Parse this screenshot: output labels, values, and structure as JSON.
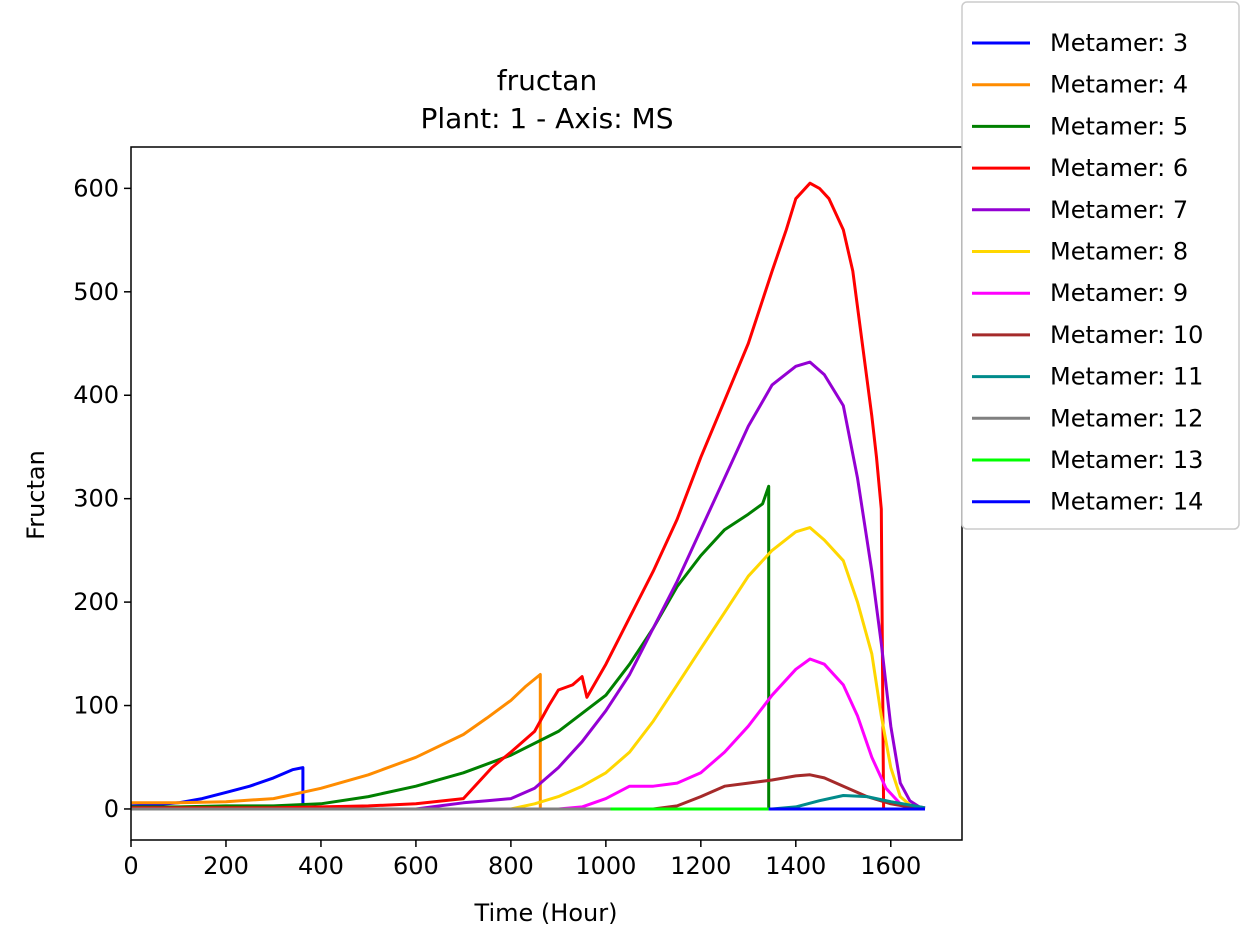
{
  "chart_data": {
    "type": "line",
    "title": "fructan",
    "subtitle": "Plant: 1 - Axis: MS",
    "xlabel": "Time (Hour)",
    "ylabel": "Fructan",
    "xlim": [
      0,
      1750
    ],
    "ylim": [
      -30,
      640
    ],
    "xticks": [
      0,
      200,
      400,
      600,
      800,
      1000,
      1200,
      1400,
      1600
    ],
    "yticks": [
      0,
      100,
      200,
      300,
      400,
      500,
      600
    ],
    "grid": false,
    "legend_position": "outside top-right",
    "series": [
      {
        "name": "Metamer: 3",
        "color": "#0000ff",
        "x": [
          0,
          50,
          100,
          150,
          200,
          250,
          300,
          340,
          362,
          362,
          1672
        ],
        "y": [
          3,
          4,
          6,
          10,
          16,
          22,
          30,
          38,
          40,
          0,
          0
        ]
      },
      {
        "name": "Metamer: 4",
        "color": "#ff8c00",
        "x": [
          0,
          100,
          200,
          300,
          400,
          500,
          600,
          700,
          750,
          800,
          830,
          862,
          862,
          1672
        ],
        "y": [
          6,
          6,
          7,
          10,
          20,
          33,
          50,
          72,
          88,
          105,
          118,
          130,
          0,
          0
        ]
      },
      {
        "name": "Metamer: 5",
        "color": "#008000",
        "x": [
          0,
          100,
          200,
          300,
          400,
          500,
          600,
          700,
          800,
          900,
          1000,
          1050,
          1100,
          1150,
          1200,
          1250,
          1300,
          1330,
          1343,
          1343,
          1672
        ],
        "y": [
          2,
          2,
          3,
          3,
          5,
          12,
          22,
          35,
          52,
          75,
          110,
          140,
          175,
          215,
          245,
          270,
          285,
          295,
          312,
          0,
          0
        ]
      },
      {
        "name": "Metamer: 6",
        "color": "#ff0000",
        "x": [
          0,
          200,
          300,
          400,
          500,
          600,
          700,
          760,
          800,
          850,
          880,
          900,
          930,
          950,
          960,
          1000,
          1050,
          1100,
          1150,
          1200,
          1250,
          1300,
          1350,
          1380,
          1400,
          1430,
          1450,
          1470,
          1500,
          1520,
          1540,
          1560,
          1570,
          1580,
          1585,
          1585,
          1672
        ],
        "y": [
          1,
          1,
          1,
          2,
          3,
          5,
          10,
          40,
          55,
          75,
          100,
          115,
          120,
          128,
          108,
          140,
          185,
          230,
          280,
          340,
          395,
          450,
          520,
          560,
          590,
          605,
          600,
          590,
          560,
          520,
          450,
          380,
          340,
          290,
          0,
          0,
          0
        ]
      },
      {
        "name": "Metamer: 7",
        "color": "#9400d3",
        "x": [
          0,
          600,
          650,
          700,
          750,
          800,
          850,
          900,
          950,
          1000,
          1050,
          1100,
          1150,
          1200,
          1250,
          1300,
          1350,
          1400,
          1430,
          1460,
          1500,
          1530,
          1560,
          1580,
          1600,
          1620,
          1640,
          1660,
          1672
        ],
        "y": [
          0,
          0,
          3,
          6,
          8,
          10,
          20,
          40,
          65,
          95,
          130,
          175,
          220,
          270,
          320,
          370,
          410,
          428,
          432,
          420,
          390,
          320,
          230,
          160,
          80,
          25,
          8,
          2,
          1
        ]
      },
      {
        "name": "Metamer: 8",
        "color": "#ffd700",
        "x": [
          0,
          800,
          850,
          900,
          950,
          1000,
          1050,
          1100,
          1150,
          1200,
          1250,
          1300,
          1350,
          1400,
          1430,
          1460,
          1500,
          1530,
          1560,
          1580,
          1600,
          1620,
          1640,
          1660,
          1672
        ],
        "y": [
          0,
          0,
          5,
          12,
          22,
          35,
          55,
          85,
          120,
          155,
          190,
          225,
          250,
          268,
          272,
          260,
          240,
          200,
          150,
          90,
          40,
          12,
          4,
          1,
          1
        ]
      },
      {
        "name": "Metamer: 9",
        "color": "#ff00ff",
        "x": [
          0,
          900,
          950,
          1000,
          1050,
          1100,
          1150,
          1200,
          1250,
          1300,
          1350,
          1400,
          1430,
          1460,
          1500,
          1530,
          1560,
          1590,
          1620,
          1650,
          1672
        ],
        "y": [
          0,
          0,
          2,
          10,
          22,
          22,
          25,
          35,
          55,
          80,
          110,
          135,
          145,
          140,
          120,
          90,
          50,
          20,
          5,
          1,
          0
        ]
      },
      {
        "name": "Metamer: 10",
        "color": "#a52a2a",
        "x": [
          0,
          1100,
          1150,
          1200,
          1250,
          1300,
          1350,
          1400,
          1430,
          1460,
          1500,
          1550,
          1600,
          1650,
          1672
        ],
        "y": [
          0,
          0,
          3,
          12,
          22,
          25,
          28,
          32,
          33,
          30,
          22,
          12,
          5,
          1,
          0
        ]
      },
      {
        "name": "Metamer: 11",
        "color": "#008b8b",
        "x": [
          0,
          1350,
          1400,
          1450,
          1500,
          1550,
          1600,
          1650,
          1672
        ],
        "y": [
          0,
          0,
          2,
          8,
          13,
          12,
          7,
          3,
          1
        ]
      },
      {
        "name": "Metamer: 12",
        "color": "#808080",
        "x": [
          0,
          1672
        ],
        "y": [
          0,
          0
        ]
      },
      {
        "name": "Metamer: 13",
        "color": "#00ff00",
        "x": [
          1010,
          1343
        ],
        "y": [
          0,
          0
        ]
      },
      {
        "name": "Metamer: 14",
        "color": "#0000ff",
        "x": [
          1343,
          1672
        ],
        "y": [
          0,
          0
        ]
      }
    ]
  }
}
